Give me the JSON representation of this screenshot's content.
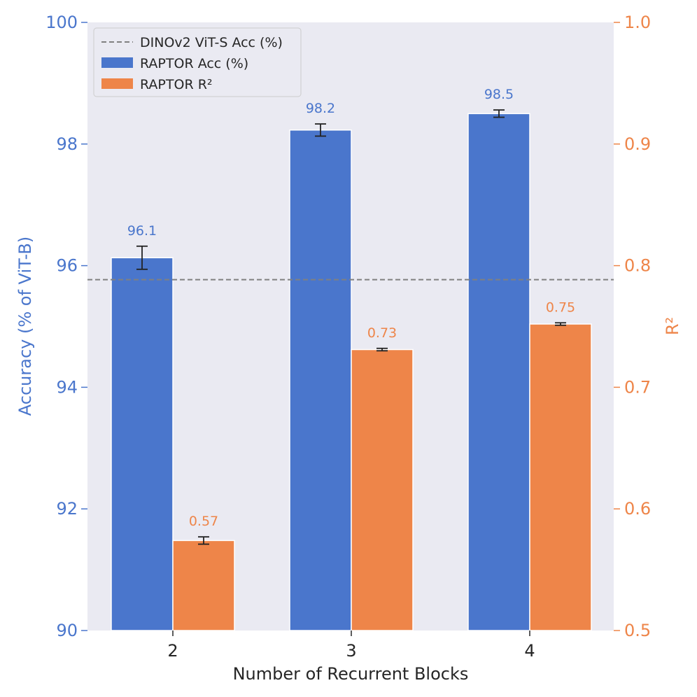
{
  "chart_data": {
    "type": "bar",
    "categories": [
      "2",
      "3",
      "4"
    ],
    "xlabel": "Number of Recurrent Blocks",
    "ylabel_left": "Accuracy (% of ViT-B)",
    "ylabel_right": "R²",
    "ylim_left": [
      90,
      100
    ],
    "ylim_right": [
      0.5,
      1.0
    ],
    "yticks_left": [
      "90",
      "92",
      "94",
      "96",
      "98",
      "100"
    ],
    "yticks_right": [
      "0.5",
      "0.6",
      "0.7",
      "0.8",
      "0.9",
      "1.0"
    ],
    "grid": false,
    "legend_position": "top-left",
    "series": [
      {
        "name": "RAPTOR Acc (%)",
        "axis": "left",
        "color": "#4a76cc",
        "values": [
          96.13,
          98.23,
          98.5
        ],
        "errors": [
          0.19,
          0.1,
          0.06
        ],
        "labels": [
          "96.1",
          "98.2",
          "98.5"
        ]
      },
      {
        "name": "RAPTOR R²",
        "axis": "right",
        "color": "#ee8549",
        "values": [
          0.574,
          0.731,
          0.752
        ],
        "errors": [
          0.003,
          0.001,
          0.001
        ],
        "labels": [
          "0.57",
          "0.73",
          "0.75"
        ]
      }
    ],
    "reference_line": {
      "name": "DINOv2 ViT-S Acc (%)",
      "axis": "left",
      "value": 95.77,
      "color": "#808080"
    }
  }
}
